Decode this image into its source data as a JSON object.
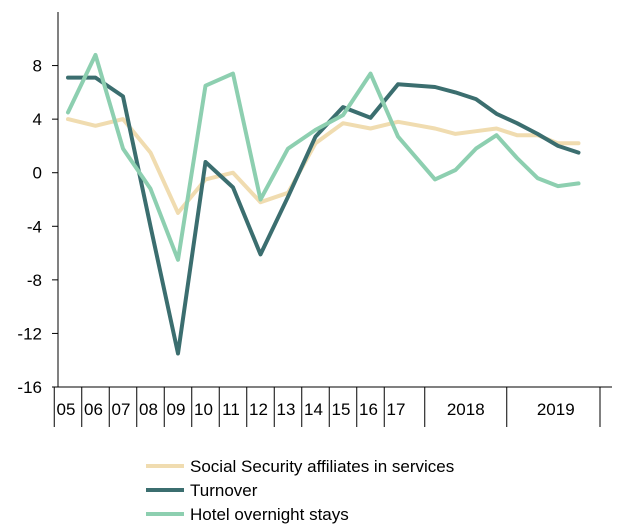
{
  "chart_data": {
    "type": "line",
    "title": "",
    "xlabel": "",
    "ylabel": "",
    "ylim": [
      -16,
      12
    ],
    "yticks": [
      -16,
      -12,
      -8,
      -4,
      0,
      4,
      8
    ],
    "grid": false,
    "legend_position": "bottom",
    "x_year_labels": [
      "05",
      "06",
      "07",
      "08",
      "09",
      "10",
      "11",
      "12",
      "13",
      "14",
      "15",
      "16",
      "17",
      "2018",
      "2019"
    ],
    "x": [
      "05",
      "06",
      "07",
      "08",
      "09",
      "10",
      "11",
      "12",
      "13",
      "14",
      "15",
      "16",
      "17",
      "2018-Q1",
      "2018-Q2",
      "2018-Q3",
      "2018-Q4",
      "2019-Q1",
      "2019-Q2",
      "2019-Q3",
      "2019-Q4"
    ],
    "series": [
      {
        "name": "Social Security affiliates in services",
        "color": "#f0dcb0",
        "values": [
          4.0,
          3.5,
          4.0,
          1.5,
          -3.0,
          -0.5,
          0.0,
          -2.2,
          -1.5,
          2.2,
          3.7,
          3.3,
          3.8,
          3.3,
          2.9,
          3.1,
          3.3,
          2.8,
          2.8,
          2.2,
          2.2
        ]
      },
      {
        "name": "Turnover",
        "color": "#3b6e6f",
        "values": [
          7.1,
          7.1,
          5.7,
          -4.0,
          -13.5,
          0.8,
          -1.1,
          -6.1,
          -1.8,
          2.7,
          4.9,
          4.1,
          6.6,
          6.4,
          6.0,
          5.5,
          4.4,
          3.7,
          2.9,
          2.0,
          1.5
        ]
      },
      {
        "name": "Hotel overnight stays",
        "color": "#8dcfb0",
        "values": [
          4.5,
          8.8,
          1.8,
          -1.2,
          -6.5,
          6.5,
          7.4,
          -2.0,
          1.8,
          3.2,
          4.3,
          7.4,
          2.7,
          -0.5,
          0.2,
          1.8,
          2.8,
          1.1,
          -0.4,
          -1.0,
          -0.8
        ]
      }
    ]
  }
}
